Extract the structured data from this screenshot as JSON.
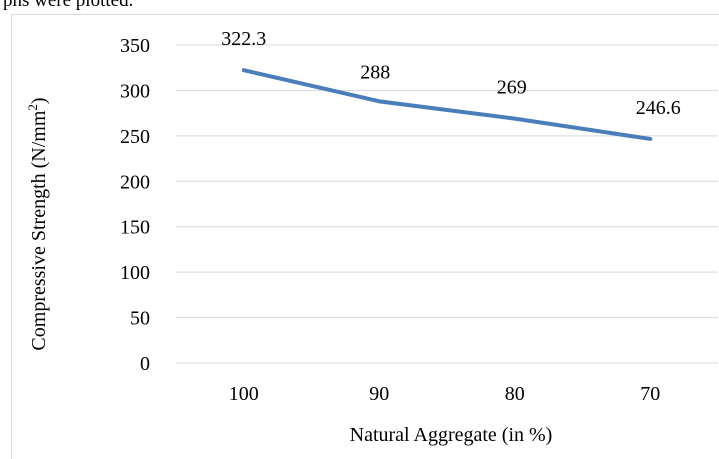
{
  "page": {
    "top_text": "phs were plotted."
  },
  "chart_data": {
    "type": "line",
    "categories": [
      "100",
      "90",
      "80",
      "70"
    ],
    "series": [
      {
        "values": [
          322.3,
          288,
          269,
          246.6
        ],
        "color": "#4a7ebb"
      }
    ],
    "data_labels": [
      "322.3",
      "288",
      "269",
      "246.6"
    ],
    "title": "",
    "xlabel": "Natural Aggregate (in %)",
    "ylabel_main": "Compressive Strength (N/mm",
    "ylabel_sup": "2",
    "ylabel_end": ")",
    "ylim": [
      0,
      350
    ],
    "yticks": [
      0,
      50,
      100,
      150,
      200,
      250,
      300,
      350
    ],
    "grid": true,
    "gridline_color": "#d9d9d9",
    "legend": "none"
  }
}
